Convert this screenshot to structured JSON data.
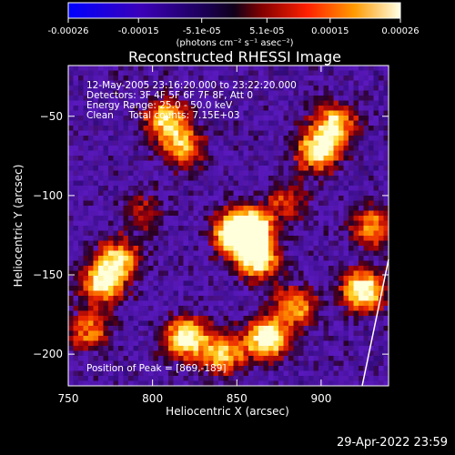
{
  "chart_data": {
    "type": "heatmap",
    "title": "Reconstructed RHESSI Image",
    "xlabel": "Heliocentric X (arcsec)",
    "ylabel": "Heliocentric Y (arcsec)",
    "xlim": [
      750,
      940
    ],
    "ylim": [
      -220,
      -18
    ],
    "xticks": [
      750,
      800,
      850,
      900
    ],
    "yticks": [
      -50,
      -100,
      -150,
      -200
    ],
    "x_tick_labels": [
      "750",
      "800",
      "850",
      "900"
    ],
    "y_tick_labels": [
      "−50",
      "−100",
      "−150",
      "−200"
    ],
    "colorbar": {
      "range": [
        -0.00026,
        0.00026
      ],
      "ticks": [
        -0.00026,
        -0.00015,
        -5.1e-05,
        5.1e-05,
        0.00015,
        0.00026
      ],
      "tick_labels": [
        "-0.00026",
        "-0.00015",
        "-5.1e-05",
        "5.1e-05",
        "0.00015",
        "0.00026"
      ],
      "unit_label": "(photons cm⁻² s⁻¹ asec⁻²)"
    },
    "annotations": {
      "time_range": "12-May-2005 23:16:20.000 to 23:22:20.000",
      "detectors": "Detectors: 3F 4F 5F 6F 7F 8F, Att 0",
      "energy": "Energy Range: 25.0 - 50.0 keV",
      "clean": "Clean     Total counts: 7.15E+03",
      "peak": "Position of Peak = [869,-189]"
    },
    "peak_position": [
      869,
      -189
    ],
    "hotspots": [
      {
        "x": 858,
        "y": -120,
        "level": 1.0
      },
      {
        "x": 862,
        "y": -140,
        "level": 0.9
      },
      {
        "x": 848,
        "y": -125,
        "level": 0.8
      },
      {
        "x": 898,
        "y": -72,
        "level": 0.85
      },
      {
        "x": 908,
        "y": -55,
        "level": 0.75
      },
      {
        "x": 808,
        "y": -52,
        "level": 0.75
      },
      {
        "x": 818,
        "y": -70,
        "level": 0.6
      },
      {
        "x": 770,
        "y": -155,
        "level": 0.8
      },
      {
        "x": 780,
        "y": -140,
        "level": 0.7
      },
      {
        "x": 820,
        "y": -190,
        "level": 0.95
      },
      {
        "x": 842,
        "y": -200,
        "level": 0.7
      },
      {
        "x": 868,
        "y": -190,
        "level": 1.0
      },
      {
        "x": 885,
        "y": -170,
        "level": 0.65
      },
      {
        "x": 925,
        "y": -160,
        "level": 0.95
      },
      {
        "x": 930,
        "y": -120,
        "level": 0.6
      },
      {
        "x": 762,
        "y": -185,
        "level": 0.55
      },
      {
        "x": 795,
        "y": -110,
        "level": 0.35
      },
      {
        "x": 880,
        "y": -105,
        "level": 0.4
      }
    ]
  },
  "footer": {
    "timestamp": "29-Apr-2022 23:59"
  }
}
